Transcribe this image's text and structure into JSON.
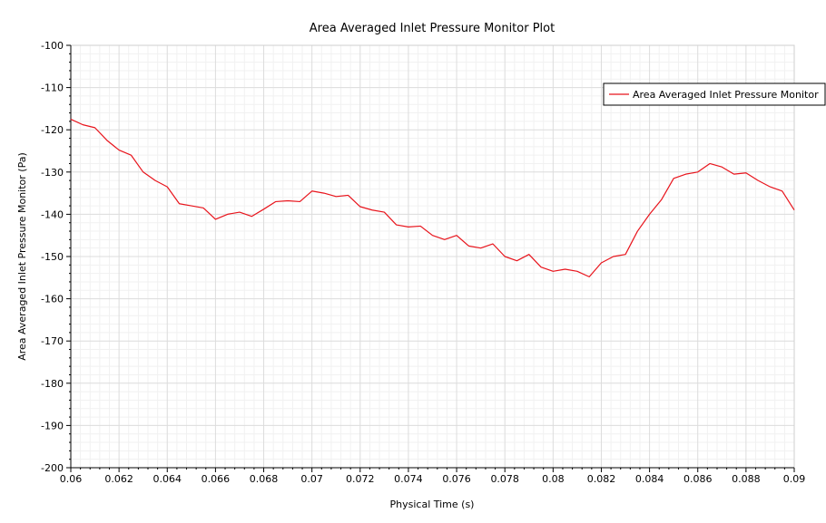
{
  "chart_data": {
    "type": "line",
    "title": "Area Averaged Inlet Pressure Monitor Plot",
    "xlabel": "Physical Time (s)",
    "ylabel": "Area Averaged Inlet Pressure Monitor (Pa)",
    "xlim": [
      0.06,
      0.09
    ],
    "ylim": [
      -200,
      -100
    ],
    "x_ticks": [
      "0.06",
      "0.062",
      "0.064",
      "0.066",
      "0.068",
      "0.07",
      "0.072",
      "0.074",
      "0.076",
      "0.078",
      "0.08",
      "0.082",
      "0.084",
      "0.086",
      "0.088",
      "0.09"
    ],
    "y_ticks": [
      "-100",
      "-110",
      "-120",
      "-130",
      "-140",
      "-150",
      "-160",
      "-170",
      "-180",
      "-190",
      "-200"
    ],
    "grid": true,
    "legend_position": "top-right",
    "series": [
      {
        "name": "Area Averaged Inlet Pressure Monitor",
        "color": "#e8141c",
        "x": [
          0.06,
          0.0605,
          0.061,
          0.0615,
          0.062,
          0.0625,
          0.063,
          0.0635,
          0.064,
          0.0645,
          0.065,
          0.0655,
          0.066,
          0.0665,
          0.067,
          0.0675,
          0.068,
          0.0685,
          0.069,
          0.0695,
          0.07,
          0.0705,
          0.071,
          0.0715,
          0.072,
          0.0725,
          0.073,
          0.0735,
          0.074,
          0.0745,
          0.075,
          0.0755,
          0.076,
          0.0765,
          0.077,
          0.0775,
          0.078,
          0.0785,
          0.079,
          0.0795,
          0.08,
          0.0805,
          0.081,
          0.0815,
          0.082,
          0.0825,
          0.083,
          0.0835,
          0.084,
          0.0845,
          0.085,
          0.0855,
          0.086,
          0.0865,
          0.087,
          0.0875,
          0.088,
          0.0885,
          0.089,
          0.0895,
          0.09
        ],
        "y": [
          -117.5,
          -118.8,
          -119.5,
          -122.5,
          -124.8,
          -126.0,
          -130.0,
          -132.0,
          -133.5,
          -137.5,
          -138.0,
          -138.5,
          -141.2,
          -140.0,
          -139.5,
          -140.5,
          -138.8,
          -137.0,
          -136.8,
          -137.0,
          -134.5,
          -135.0,
          -135.8,
          -135.5,
          -138.2,
          -139.0,
          -139.5,
          -142.5,
          -143.0,
          -142.8,
          -145.0,
          -146.0,
          -145.0,
          -147.5,
          -148.0,
          -147.0,
          -150.0,
          -151.0,
          -149.5,
          -152.5,
          -153.5,
          -153.0,
          -153.5,
          -154.8,
          -151.5,
          -150.0,
          -149.5,
          -144.0,
          -140.0,
          -136.5,
          -131.5,
          -130.5,
          -130.0,
          -128.0,
          -128.8,
          -130.5,
          -130.2,
          -132.0,
          -133.5,
          -134.5,
          -139.0
        ]
      }
    ]
  }
}
